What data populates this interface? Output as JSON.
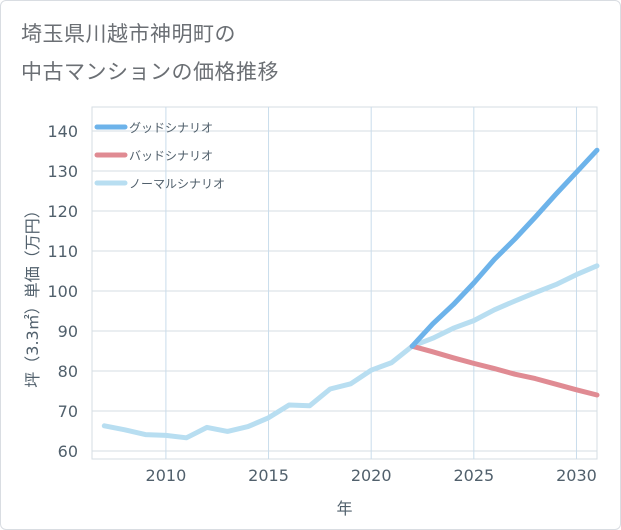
{
  "title_line1": "埼玉県川越市神明町の",
  "title_line2": "中古マンションの価格推移",
  "chart_data": {
    "type": "line",
    "title": "埼玉県川越市神明町の中古マンションの価格推移",
    "xlabel": "年",
    "ylabel": "坪（3.3㎡）単価（万円）",
    "xlim": [
      2006.4,
      2031
    ],
    "ylim": [
      58,
      146
    ],
    "xticks": [
      2010,
      2015,
      2020,
      2025,
      2030
    ],
    "yticks": [
      60,
      70,
      80,
      90,
      100,
      110,
      120,
      130,
      140
    ],
    "grid": true,
    "legend_position": "top-left",
    "series": [
      {
        "name": "グッドシナリオ",
        "color": "#6db3ea",
        "x": [
          2022,
          2023,
          2024,
          2025,
          2026,
          2027,
          2028,
          2029,
          2030,
          2031
        ],
        "y": [
          86.2,
          91.8,
          96.6,
          102.0,
          107.9,
          113.0,
          118.5,
          124.2,
          129.7,
          135.2
        ]
      },
      {
        "name": "バッドシナリオ",
        "color": "#e08b93",
        "x": [
          2022,
          2023,
          2024,
          2025,
          2026,
          2027,
          2028,
          2029,
          2030,
          2031
        ],
        "y": [
          86.2,
          84.8,
          83.3,
          81.9,
          80.6,
          79.2,
          78.1,
          76.7,
          75.3,
          74.0
        ]
      },
      {
        "name": "ノーマルシナリオ",
        "color": "#b8def1",
        "x": [
          2007,
          2008,
          2009,
          2010,
          2011,
          2012,
          2013,
          2014,
          2015,
          2016,
          2017,
          2018,
          2019,
          2020,
          2021,
          2022,
          2023,
          2024,
          2025,
          2026,
          2027,
          2028,
          2029,
          2030,
          2031
        ],
        "y": [
          66.3,
          65.3,
          64.1,
          63.9,
          63.3,
          65.9,
          64.9,
          66.1,
          68.3,
          71.5,
          71.3,
          75.5,
          76.8,
          80.2,
          82.1,
          86.2,
          88.2,
          90.7,
          92.6,
          95.3,
          97.5,
          99.6,
          101.6,
          104.1,
          106.3
        ]
      }
    ]
  }
}
